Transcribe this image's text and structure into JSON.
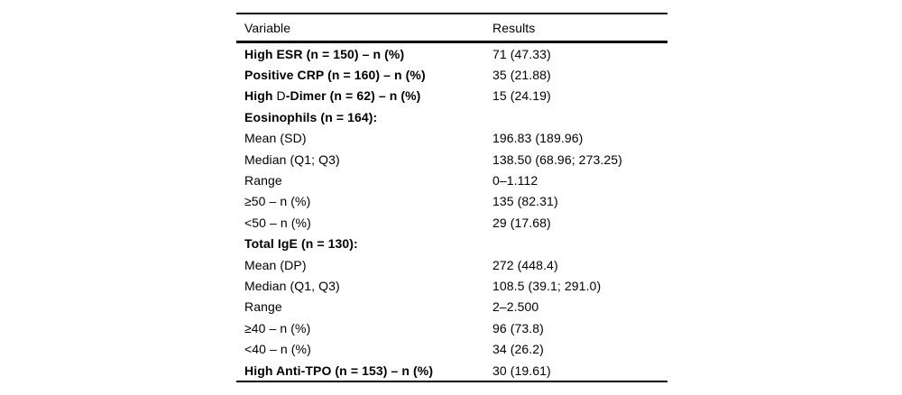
{
  "page": {
    "background": "#ffffff",
    "text_color": "#000000"
  },
  "table": {
    "columns": [
      "Variable",
      "Results"
    ],
    "rows": [
      {
        "variable": "High ESR (n = 150) – n (%)",
        "results": "71 (47.33)",
        "bold": true
      },
      {
        "variable": "Positive CRP (n = 160) – n (%)",
        "results": "35 (21.88)",
        "bold": true
      },
      {
        "variable": "High D-Dimer (n = 62) – n (%)",
        "variable_parts": [
          {
            "text": "High ",
            "bold": true
          },
          {
            "text": "D",
            "bold": false
          },
          {
            "text": "-Dimer (n = 62) – n (%)",
            "bold": true
          }
        ],
        "results": "15 (24.19)",
        "bold": true
      },
      {
        "variable": "Eosinophils (n = 164):",
        "results": "",
        "bold": true
      },
      {
        "variable": "Mean (SD)",
        "results": "196.83 (189.96)",
        "bold": false
      },
      {
        "variable": "Median (Q1; Q3)",
        "results": "138.50 (68.96; 273.25)",
        "bold": false
      },
      {
        "variable": "Range",
        "results": "0–1.112",
        "bold": false
      },
      {
        "variable": "≥50 – n (%)",
        "results": "135 (82.31)",
        "bold": false
      },
      {
        "variable": "<50 – n (%)",
        "results": "29 (17.68)",
        "bold": false
      },
      {
        "variable": "Total IgE (n = 130):",
        "results": "",
        "bold": true
      },
      {
        "variable": "Mean (DP)",
        "results": "272 (448.4)",
        "bold": false
      },
      {
        "variable": "Median (Q1, Q3)",
        "results": "108.5 (39.1; 291.0)",
        "bold": false
      },
      {
        "variable": "Range",
        "results": "2–2.500",
        "bold": false
      },
      {
        "variable": "≥40 – n (%)",
        "results": "96 (73.8)",
        "bold": false
      },
      {
        "variable": "<40 – n (%)",
        "results": "34 (26.2)",
        "bold": false
      },
      {
        "variable": "High Anti-TPO (n = 153) – n (%)",
        "results": "30 (19.61)",
        "bold": true
      }
    ]
  }
}
